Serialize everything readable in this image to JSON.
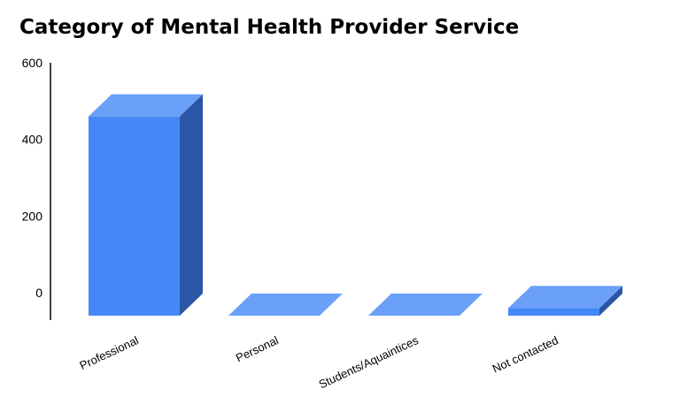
{
  "chart_data": {
    "type": "bar",
    "title": "Category of Mental Health Provider Service",
    "categories": [
      "Professional",
      "Personal",
      "Students/Aquaintices",
      "Not contacted"
    ],
    "values": [
      520,
      0,
      0,
      20
    ],
    "yticks": [
      "0",
      "200",
      "400",
      "600"
    ],
    "ylim": [
      0,
      600
    ],
    "xlabel": "",
    "ylabel": "",
    "grid": false,
    "legend": "none",
    "style": "3d",
    "colors": {
      "front": "#4488f8",
      "top": "#6aa0f7",
      "side": "#2b56a5",
      "axis": "#000000"
    }
  }
}
